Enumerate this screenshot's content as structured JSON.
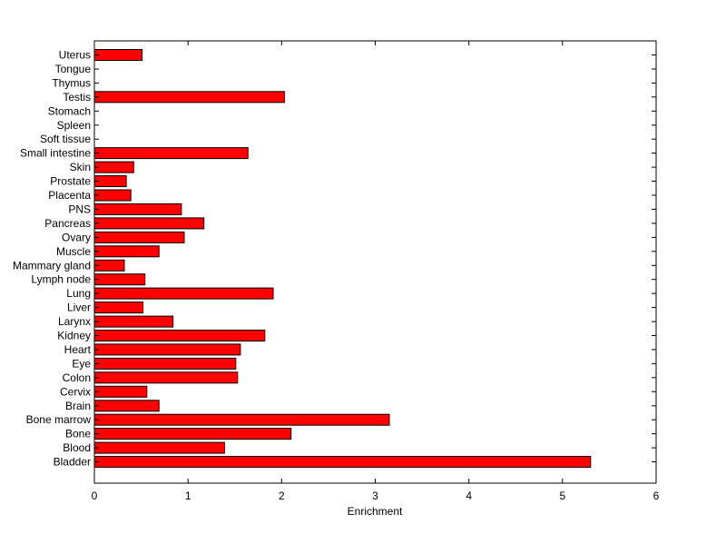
{
  "chart_data": {
    "type": "bar",
    "orientation": "horizontal",
    "title": "",
    "xlabel": "Enrichment",
    "ylabel": "",
    "xlim": [
      0,
      6
    ],
    "xticks": [
      0,
      1,
      2,
      3,
      4,
      5,
      6
    ],
    "grid": false,
    "bar_color": "#ff0000",
    "bar_edge_color": "#000000",
    "categories": [
      "Uterus",
      "Tongue",
      "Thymus",
      "Testis",
      "Stomach",
      "Spleen",
      "Soft tissue",
      "Small intestine",
      "Skin",
      "Prostate",
      "Placenta",
      "PNS",
      "Pancreas",
      "Ovary",
      "Muscle",
      "Mammary gland",
      "Lymph node",
      "Lung",
      "Liver",
      "Larynx",
      "Kidney",
      "Heart",
      "Eye",
      "Colon",
      "Cervix",
      "Brain",
      "Bone marrow",
      "Bone",
      "Blood",
      "Bladder"
    ],
    "values": [
      0.51,
      0,
      0,
      2.03,
      0,
      0,
      0,
      1.64,
      0.42,
      0.34,
      0.39,
      0.93,
      1.17,
      0.96,
      0.69,
      0.32,
      0.54,
      1.91,
      0.52,
      0.84,
      1.82,
      1.56,
      1.51,
      1.53,
      0.56,
      0.69,
      3.15,
      2.1,
      1.39,
      5.3
    ]
  }
}
